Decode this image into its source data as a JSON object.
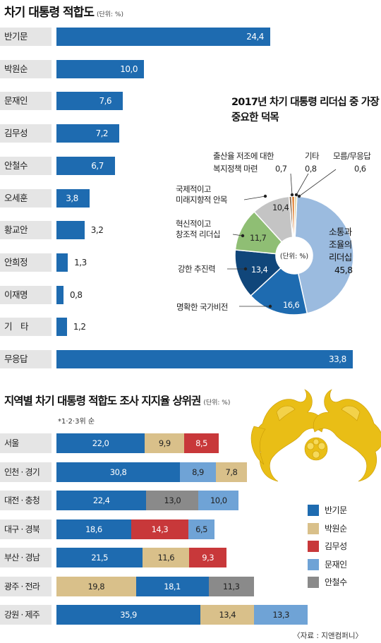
{
  "chart_data": [
    {
      "type": "bar",
      "title": "차기 대통령 적합도",
      "unit": "(단위: %)",
      "categories": [
        "반기문",
        "박원순",
        "문재인",
        "김무성",
        "안철수",
        "오세훈",
        "황교안",
        "안희정",
        "이재명",
        "기　타",
        "무응답"
      ],
      "values": [
        24.4,
        10.0,
        7.6,
        7.2,
        6.7,
        3.8,
        3.2,
        1.3,
        0.8,
        1.2,
        33.8
      ],
      "value_labels": [
        "24,4",
        "10,0",
        "7,6",
        "7,2",
        "6,7",
        "3,8",
        "3,2",
        "1,3",
        "0,8",
        "1,2",
        "33,8"
      ],
      "color": "#1e6bb0"
    },
    {
      "type": "pie",
      "title": "2017년 차기 대통령 리더십 중 가장 중요한 덕목",
      "unit": "(단위: %)",
      "slices": [
        {
          "label": "소통과 조율의 리더십",
          "value": 45.8,
          "value_label": "45,8",
          "color": "#9bbbdf"
        },
        {
          "label": "명확한 국가비전",
          "value": 16.6,
          "value_label": "16,6",
          "color": "#1e6bb0"
        },
        {
          "label": "강한 추진력",
          "value": 13.4,
          "value_label": "13,4",
          "color": "#10467a"
        },
        {
          "label": "혁신적이고 창조적 리더십",
          "value": 11.7,
          "value_label": "11,7",
          "color": "#8fbe74"
        },
        {
          "label": "국제적이고 미래지향적 안목",
          "value": 10.4,
          "value_label": "10,4",
          "color": "#c4c4c4"
        },
        {
          "label": "출산율 저조에 대한 복지정책 마련",
          "value": 0.7,
          "value_label": "0,7",
          "color": "#8a6a4a"
        },
        {
          "label": "기타",
          "value": 0.8,
          "value_label": "0,8",
          "color": "#e07a2a"
        },
        {
          "label": "모름/무응답",
          "value": 0.6,
          "value_label": "0,6",
          "color": "#d6ca8e"
        }
      ]
    },
    {
      "type": "bar",
      "stacked": true,
      "title": "지역별 차기 대통령 적합도 조사 지지율 상위권",
      "unit": "(단위: %)",
      "note": "*1·2·3위 순",
      "categories": [
        "서울",
        "인천 · 경기",
        "대전 · 충청",
        "대구 · 경북",
        "부산 · 경남",
        "광주 · 전라",
        "강원 · 제주"
      ],
      "rows": [
        [
          {
            "name": "반기문",
            "value": 22.0,
            "label": "22,0"
          },
          {
            "name": "박원순",
            "value": 9.9,
            "label": "9,9"
          },
          {
            "name": "김무성",
            "value": 8.5,
            "label": "8,5"
          }
        ],
        [
          {
            "name": "반기문",
            "value": 30.8,
            "label": "30,8"
          },
          {
            "name": "문재인",
            "value": 8.9,
            "label": "8,9"
          },
          {
            "name": "박원순",
            "value": 7.8,
            "label": "7,8"
          }
        ],
        [
          {
            "name": "반기문",
            "value": 22.4,
            "label": "22,4"
          },
          {
            "name": "안철수",
            "value": 13.0,
            "label": "13,0"
          },
          {
            "name": "문재인",
            "value": 10.0,
            "label": "10,0"
          }
        ],
        [
          {
            "name": "반기문",
            "value": 18.6,
            "label": "18,6"
          },
          {
            "name": "김무성",
            "value": 14.3,
            "label": "14,3"
          },
          {
            "name": "문재인",
            "value": 6.5,
            "label": "6,5"
          }
        ],
        [
          {
            "name": "반기문",
            "value": 21.5,
            "label": "21,5"
          },
          {
            "name": "박원순",
            "value": 11.6,
            "label": "11,6"
          },
          {
            "name": "김무성",
            "value": 9.3,
            "label": "9,3"
          }
        ],
        [
          {
            "name": "박원순",
            "value": 19.8,
            "label": "19,8"
          },
          {
            "name": "반기문",
            "value": 18.1,
            "label": "18,1"
          },
          {
            "name": "안철수",
            "value": 11.3,
            "label": "11,3"
          }
        ],
        [
          {
            "name": "반기문",
            "value": 35.9,
            "label": "35,9"
          },
          {
            "name": "박원순",
            "value": 13.4,
            "label": "13,4"
          },
          {
            "name": "문재인",
            "value": 13.3,
            "label": "13,3"
          }
        ]
      ],
      "legend": [
        {
          "name": "반기문",
          "color": "#1e6bb0"
        },
        {
          "name": "박원순",
          "color": "#d9c08a"
        },
        {
          "name": "김무성",
          "color": "#c8383a"
        },
        {
          "name": "문재인",
          "color": "#6fa3d6"
        },
        {
          "name": "안철수",
          "color": "#8a8a8a"
        }
      ]
    }
  ],
  "source": "〈자료 : 지앤컴퍼니〉"
}
